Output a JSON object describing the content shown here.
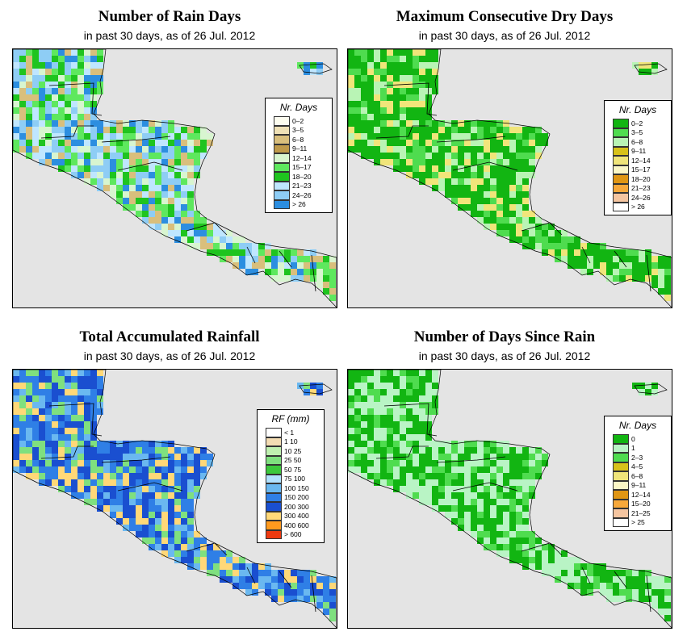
{
  "panels": [
    {
      "title": "Number of Rain Days",
      "subtitle": "in past 30 days, as of  26 Jul. 2012",
      "legend": {
        "title": "Nr. Days",
        "items": [
          {
            "label": "0–2",
            "color": "#fdfdf0"
          },
          {
            "label": "3–5",
            "color": "#efe1b6"
          },
          {
            "label": "6–8",
            "color": "#d9bf7c"
          },
          {
            "label": "9–11",
            "color": "#bf9a4a"
          },
          {
            "label": "12–14",
            "color": "#d8f5d0"
          },
          {
            "label": "15–17",
            "color": "#5ee85e"
          },
          {
            "label": "18–20",
            "color": "#1fc41f"
          },
          {
            "label": "21–23",
            "color": "#bfe6ff"
          },
          {
            "label": "24–26",
            "color": "#8ecdf5"
          },
          {
            "label": "> 26",
            "color": "#2c8ee0"
          }
        ]
      },
      "palette": [
        "#5ee85e",
        "#1fc41f",
        "#bfe6ff",
        "#8ecdf5",
        "#d9bf7c",
        "#d8f5d0",
        "#2c8ee0"
      ]
    },
    {
      "title": "Maximum Consecutive Dry Days",
      "subtitle": "in past 30 days, as of  26 Jul. 2012",
      "legend": {
        "title": "Nr. Days",
        "items": [
          {
            "label": "0–2",
            "color": "#12b512"
          },
          {
            "label": "3–5",
            "color": "#4fdc4f"
          },
          {
            "label": "6–8",
            "color": "#b9f4b5"
          },
          {
            "label": "9–11",
            "color": "#d8c21a"
          },
          {
            "label": "12–14",
            "color": "#f0e57a"
          },
          {
            "label": "15–17",
            "color": "#fbf7c6"
          },
          {
            "label": "18–20",
            "color": "#e09614"
          },
          {
            "label": "21–23",
            "color": "#f7a83a"
          },
          {
            "label": "24–26",
            "color": "#f5c5a0"
          },
          {
            "label": "> 26",
            "color": "#ffffff"
          }
        ]
      },
      "palette": [
        "#12b512",
        "#12b512",
        "#4fdc4f",
        "#12b512",
        "#b9f4b5",
        "#f0e57a"
      ]
    },
    {
      "title": "Total Accumulated Rainfall",
      "subtitle": "in past 30 days, as of  26 Jul. 2012",
      "legend": {
        "title": "RF (mm)",
        "items": [
          {
            "label": "< 1",
            "color": "#ffffff"
          },
          {
            "label": "1  10",
            "color": "#f3dcb3"
          },
          {
            "label": "10  25",
            "color": "#bff0b0"
          },
          {
            "label": "25  50",
            "color": "#7fe07f"
          },
          {
            "label": "50  75",
            "color": "#3cc83c"
          },
          {
            "label": "75  100",
            "color": "#b2e2ff"
          },
          {
            "label": "100  150",
            "color": "#6ab8f0"
          },
          {
            "label": "150  200",
            "color": "#2f7fe6"
          },
          {
            "label": "200  300",
            "color": "#1a4fd0"
          },
          {
            "label": "300  400",
            "color": "#ffd878"
          },
          {
            "label": "400  600",
            "color": "#ff9a1e"
          },
          {
            "label": "> 600",
            "color": "#ee3a10"
          }
        ]
      },
      "palette": [
        "#1a4fd0",
        "#2f7fe6",
        "#2f7fe6",
        "#6ab8f0",
        "#1a4fd0",
        "#7fe07f",
        "#ffd878"
      ]
    },
    {
      "title": "Number of Days Since Rain",
      "subtitle": "in past 30 days, as of  26 Jul. 2012",
      "legend": {
        "title": "Nr. Days",
        "items": [
          {
            "label": "0",
            "color": "#12b512"
          },
          {
            "label": "1",
            "color": "#b9f4c5"
          },
          {
            "label": "2–3",
            "color": "#4fdc4f"
          },
          {
            "label": "4–5",
            "color": "#d8c21a"
          },
          {
            "label": "6–8",
            "color": "#f0e57a"
          },
          {
            "label": "9–11",
            "color": "#fbf7c6"
          },
          {
            "label": "12–14",
            "color": "#e09614"
          },
          {
            "label": "15–20",
            "color": "#f7a83a"
          },
          {
            "label": "21–25",
            "color": "#f5c5a0"
          },
          {
            "label": "> 25",
            "color": "#ffffff"
          }
        ]
      },
      "palette": [
        "#12b512",
        "#b9f4c5",
        "#b9f4c5",
        "#12b512",
        "#4fdc4f"
      ]
    }
  ]
}
